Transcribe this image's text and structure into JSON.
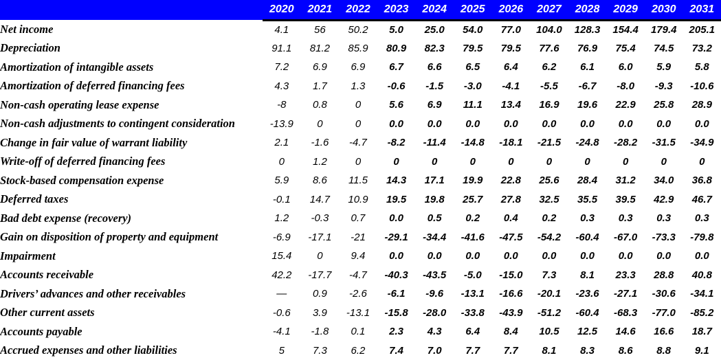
{
  "colors": {
    "header_bg": "#0000FF",
    "header_text": "#FFFFFF",
    "body_text": "#000000",
    "header_underline": "#000000"
  },
  "table": {
    "years": [
      "2020",
      "2021",
      "2022",
      "2023",
      "2024",
      "2025",
      "2026",
      "2027",
      "2028",
      "2029",
      "2030",
      "2031"
    ],
    "historical_column_count": 3,
    "rows": [
      {
        "label": "Net income",
        "values": [
          "4.1",
          "56",
          "50.2",
          "5.0",
          "25.0",
          "54.0",
          "77.0",
          "104.0",
          "128.3",
          "154.4",
          "179.4",
          "205.1"
        ]
      },
      {
        "label": "Depreciation",
        "values": [
          "91.1",
          "81.2",
          "85.9",
          "80.9",
          "82.3",
          "79.5",
          "79.5",
          "77.6",
          "76.9",
          "75.4",
          "74.5",
          "73.2"
        ]
      },
      {
        "label": "Amortization of intangible assets",
        "values": [
          "7.2",
          "6.9",
          "6.9",
          "6.7",
          "6.6",
          "6.5",
          "6.4",
          "6.2",
          "6.1",
          "6.0",
          "5.9",
          "5.8"
        ]
      },
      {
        "label": "Amortization of deferred financing fees",
        "values": [
          "4.3",
          "1.7",
          "1.3",
          "-0.6",
          "-1.5",
          "-3.0",
          "-4.1",
          "-5.5",
          "-6.7",
          "-8.0",
          "-9.3",
          "-10.6"
        ]
      },
      {
        "label": "Non-cash operating lease expense",
        "values": [
          "-8",
          "0.8",
          "0",
          "5.6",
          "6.9",
          "11.1",
          "13.4",
          "16.9",
          "19.6",
          "22.9",
          "25.8",
          "28.9"
        ]
      },
      {
        "label": "Non-cash adjustments to contingent consideration",
        "values": [
          "-13.9",
          "0",
          "0",
          "0.0",
          "0.0",
          "0.0",
          "0.0",
          "0.0",
          "0.0",
          "0.0",
          "0.0",
          "0.0"
        ]
      },
      {
        "label": "Change in fair value of warrant liability",
        "values": [
          "2.1",
          "-1.6",
          "-4.7",
          "-8.2",
          "-11.4",
          "-14.8",
          "-18.1",
          "-21.5",
          "-24.8",
          "-28.2",
          "-31.5",
          "-34.9"
        ]
      },
      {
        "label": "Write-off of deferred financing fees",
        "values": [
          "0",
          "1.2",
          "0",
          "0",
          "0",
          "0",
          "0",
          "0",
          "0",
          "0",
          "0",
          "0"
        ]
      },
      {
        "label": "Stock-based compensation expense",
        "values": [
          "5.9",
          "8.6",
          "11.5",
          "14.3",
          "17.1",
          "19.9",
          "22.8",
          "25.6",
          "28.4",
          "31.2",
          "34.0",
          "36.8"
        ]
      },
      {
        "label": "Deferred taxes",
        "values": [
          "-0.1",
          "14.7",
          "10.9",
          "19.5",
          "19.8",
          "25.7",
          "27.8",
          "32.5",
          "35.5",
          "39.5",
          "42.9",
          "46.7"
        ]
      },
      {
        "label": "Bad debt expense (recovery)",
        "values": [
          "1.2",
          "-0.3",
          "0.7",
          "0.0",
          "0.5",
          "0.2",
          "0.4",
          "0.2",
          "0.3",
          "0.3",
          "0.3",
          "0.3"
        ]
      },
      {
        "label": "Gain on disposition of property and equipment",
        "values": [
          "-6.9",
          "-17.1",
          "-21",
          "-29.1",
          "-34.4",
          "-41.6",
          "-47.5",
          "-54.2",
          "-60.4",
          "-67.0",
          "-73.3",
          "-79.8"
        ]
      },
      {
        "label": "Impairment",
        "values": [
          "15.4",
          "0",
          "9.4",
          "0.0",
          "0.0",
          "0.0",
          "0.0",
          "0.0",
          "0.0",
          "0.0",
          "0.0",
          "0.0"
        ]
      },
      {
        "label": "Accounts receivable",
        "values": [
          "42.2",
          "-17.7",
          "-4.7",
          "-40.3",
          "-43.5",
          "-5.0",
          "-15.0",
          "7.3",
          "8.1",
          "23.3",
          "28.8",
          "40.8"
        ]
      },
      {
        "label": "Drivers’ advances and other receivables",
        "values": [
          "—",
          "0.9",
          "-2.6",
          "-6.1",
          "-9.6",
          "-13.1",
          "-16.6",
          "-20.1",
          "-23.6",
          "-27.1",
          "-30.6",
          "-34.1"
        ]
      },
      {
        "label": "Other current assets",
        "values": [
          "-0.6",
          "3.9",
          "-13.1",
          "-15.8",
          "-28.0",
          "-33.8",
          "-43.9",
          "-51.2",
          "-60.4",
          "-68.3",
          "-77.0",
          "-85.2"
        ]
      },
      {
        "label": "Accounts payable",
        "values": [
          "-4.1",
          "-1.8",
          "0.1",
          "2.3",
          "4.3",
          "6.4",
          "8.4",
          "10.5",
          "12.5",
          "14.6",
          "16.6",
          "18.7"
        ]
      },
      {
        "label": "Accrued expenses and other liabilities",
        "values": [
          "5",
          "7.3",
          "6.2",
          "7.4",
          "7.0",
          "7.7",
          "7.7",
          "8.1",
          "8.3",
          "8.6",
          "8.8",
          "9.1"
        ]
      }
    ]
  }
}
